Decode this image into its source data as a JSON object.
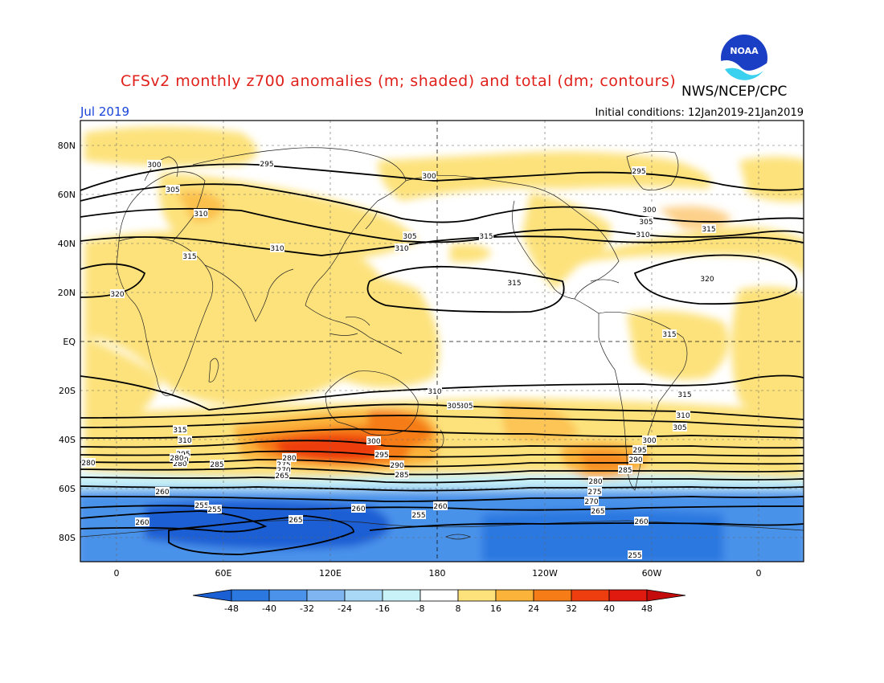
{
  "header": {
    "title": "CFSv2 monthly z700 anomalies (m; shaded) and total (dm; contours)",
    "organization": "NWS/NCEP/CPC",
    "valid_month": "Jul 2019",
    "initial_conditions": "Initial conditions: 12Jan2019-21Jan2019"
  },
  "logo": {
    "name": "noaa-logo",
    "text": "NOAA"
  },
  "map": {
    "lat_ticks": [
      "80N",
      "60N",
      "40N",
      "20N",
      "EQ",
      "20S",
      "40S",
      "60S",
      "80S"
    ],
    "lon_ticks": [
      "0",
      "60E",
      "120E",
      "180",
      "120W",
      "60W",
      "0"
    ],
    "contour_labels": [
      {
        "text": "295"
      },
      {
        "text": "300"
      },
      {
        "text": "300"
      },
      {
        "text": "295"
      },
      {
        "text": "305"
      },
      {
        "text": "310"
      },
      {
        "text": "300"
      },
      {
        "text": "305"
      },
      {
        "text": "310"
      },
      {
        "text": "315"
      },
      {
        "text": "315"
      },
      {
        "text": "310"
      },
      {
        "text": "305"
      },
      {
        "text": "315"
      },
      {
        "text": "310"
      },
      {
        "text": "320"
      },
      {
        "text": "315"
      },
      {
        "text": "320"
      },
      {
        "text": "315"
      },
      {
        "text": "310"
      },
      {
        "text": "315"
      },
      {
        "text": "305"
      },
      {
        "text": "310"
      },
      {
        "text": "305"
      },
      {
        "text": "300"
      },
      {
        "text": "295"
      },
      {
        "text": "290"
      },
      {
        "text": "285"
      },
      {
        "text": "295"
      },
      {
        "text": "290"
      },
      {
        "text": "280"
      },
      {
        "text": "300"
      },
      {
        "text": "295"
      },
      {
        "text": "290"
      },
      {
        "text": "285"
      },
      {
        "text": "280"
      },
      {
        "text": "275"
      },
      {
        "text": "270"
      },
      {
        "text": "265"
      },
      {
        "text": "280"
      },
      {
        "text": "275"
      },
      {
        "text": "270"
      },
      {
        "text": "265"
      },
      {
        "text": "260"
      },
      {
        "text": "255"
      },
      {
        "text": "255"
      },
      {
        "text": "260"
      },
      {
        "text": "265"
      },
      {
        "text": "260"
      },
      {
        "text": "255"
      },
      {
        "text": "260"
      },
      {
        "text": "255"
      },
      {
        "text": "260"
      },
      {
        "text": "280"
      },
      {
        "text": "280"
      },
      {
        "text": "285"
      },
      {
        "text": "315"
      },
      {
        "text": "310"
      },
      {
        "text": "305"
      }
    ]
  },
  "colorbar": {
    "labels": [
      "-48",
      "-40",
      "-32",
      "-24",
      "-16",
      "-8",
      "8",
      "16",
      "24",
      "32",
      "40",
      "48"
    ],
    "colors": [
      "#1a5fd4",
      "#2a78e0",
      "#4a92ea",
      "#7fb6f2",
      "#a8d8f6",
      "#c8f2f8",
      "#ffffff",
      "#fde27c",
      "#fbb33a",
      "#f57c16",
      "#ee3e10",
      "#e01a0e",
      "#c40c0c"
    ]
  }
}
